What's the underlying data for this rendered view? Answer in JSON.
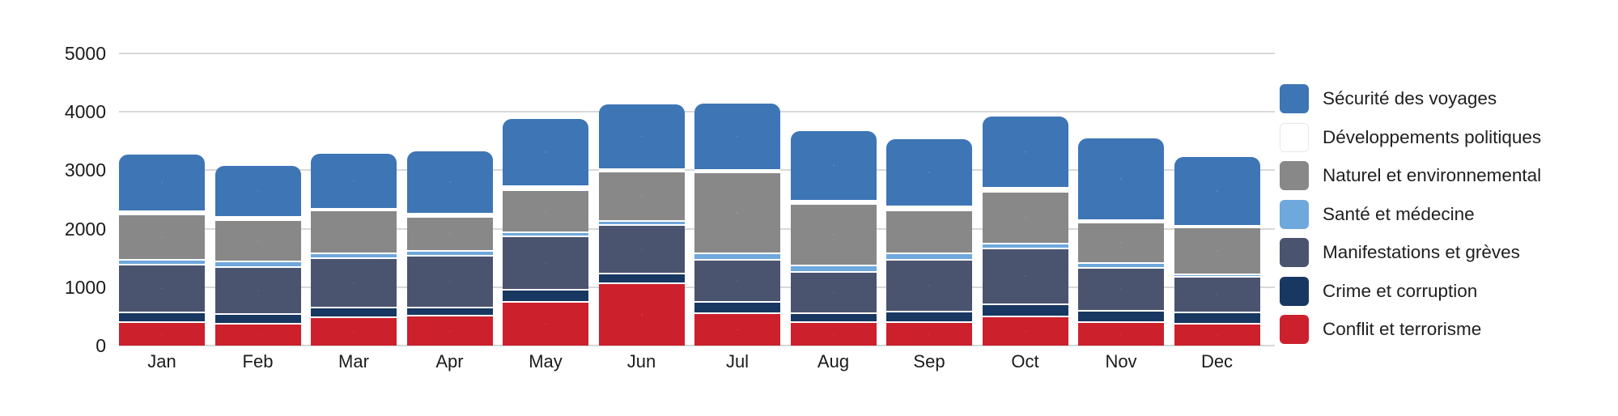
{
  "chart_data": {
    "type": "bar",
    "stacked": true,
    "title": "",
    "xlabel": "",
    "ylabel": "",
    "categories": [
      "Jan",
      "Feb",
      "Mar",
      "Apr",
      "May",
      "Jun",
      "Jul",
      "Aug",
      "Sep",
      "Oct",
      "Nov",
      "Dec"
    ],
    "series": [
      {
        "name": "Conflit et terrorisme",
        "color": "#CC202D",
        "values": [
          420,
          390,
          500,
          520,
          760,
          1080,
          570,
          410,
          420,
          510,
          410,
          390
        ]
      },
      {
        "name": "Crime et corruption",
        "color": "#183862",
        "values": [
          160,
          170,
          160,
          150,
          210,
          160,
          190,
          160,
          180,
          210,
          200,
          190
        ]
      },
      {
        "name": "Manifestations et grèves",
        "color": "#4B546F",
        "values": [
          820,
          800,
          850,
          880,
          910,
          840,
          720,
          710,
          880,
          950,
          730,
          610
        ]
      },
      {
        "name": "Santé et médecine",
        "color": "#6FA8DC",
        "values": [
          80,
          90,
          90,
          80,
          80,
          70,
          120,
          100,
          120,
          90,
          90,
          50
        ]
      },
      {
        "name": "Naturel et environnemental",
        "color": "#888888",
        "values": [
          780,
          710,
          730,
          580,
          720,
          840,
          1380,
          1060,
          730,
          880,
          690,
          800
        ]
      },
      {
        "name": "Développements politiques",
        "color": "#FFFFFF",
        "values": [
          60,
          50,
          30,
          60,
          60,
          50,
          40,
          60,
          60,
          70,
          40,
          30
        ]
      },
      {
        "name": "Sécurité des voyages",
        "color": "#3E75B5",
        "values": [
          950,
          870,
          920,
          1060,
          1140,
          1090,
          1120,
          1170,
          1140,
          1210,
          1390,
          1160
        ]
      }
    ],
    "totals": [
      3270,
      3080,
      3280,
      3330,
      3880,
      4130,
      4140,
      3670,
      3530,
      3920,
      3550,
      3230
    ],
    "y_axis": {
      "min": 0,
      "max": 5000,
      "tick_step": 1000,
      "tick_labels": [
        "0",
        "1000",
        "2000",
        "3000",
        "4000",
        "5000"
      ]
    },
    "grid": "horizontal",
    "legend": {
      "position": "right",
      "order_top_to_bottom": [
        "Sécurité des voyages",
        "Développements politiques",
        "Naturel et environnemental",
        "Santé et médecine",
        "Manifestations et grèves",
        "Crime et corruption",
        "Conflit et terrorisme"
      ]
    },
    "colors": {
      "gridline": "#d9d9d9",
      "axis_text": "#1b1b1b",
      "legend_text": "#1f1f1f",
      "white_swatch_border": "#e8e8e8"
    }
  }
}
